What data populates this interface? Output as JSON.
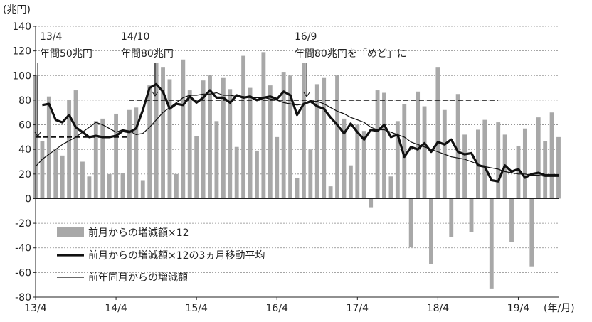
{
  "chart_data": {
    "type": "bar",
    "y_unit": "(兆円)",
    "x_unit": "(年/月)",
    "ylim": [
      -80,
      140
    ],
    "yticks": [
      140,
      120,
      100,
      80,
      60,
      40,
      20,
      0,
      -20,
      -40,
      -60,
      -80
    ],
    "xtick_labels": [
      "13/4",
      "14/4",
      "15/4",
      "16/4",
      "17/4",
      "18/4",
      "19/4"
    ],
    "grid": "dashed-horizontal",
    "legend_position": "bottom-left",
    "target_lines": [
      {
        "from_month": 0,
        "to_month": 14,
        "value": 50
      },
      {
        "from_month": 14,
        "to_month": 69,
        "value": 80
      }
    ],
    "annotations": [
      {
        "date": "13/4",
        "label": "年間50兆円",
        "month_index": 0
      },
      {
        "date": "14/10",
        "label": "年間80兆円",
        "month_index": 18
      },
      {
        "date": "16/9",
        "label": "年間80兆円を「めど」に",
        "month_index": 41
      }
    ],
    "legend": [
      "前月からの増減額×12",
      "前月からの増減額×12の3ヵ月移動平均",
      "前年同月からの増減額"
    ],
    "months": [
      "13/4",
      "13/5",
      "13/6",
      "13/7",
      "13/8",
      "13/9",
      "13/10",
      "13/11",
      "13/12",
      "14/1",
      "14/2",
      "14/3",
      "14/4",
      "14/5",
      "14/6",
      "14/7",
      "14/8",
      "14/9",
      "14/10",
      "14/11",
      "14/12",
      "15/1",
      "15/2",
      "15/3",
      "15/4",
      "15/5",
      "15/6",
      "15/7",
      "15/8",
      "15/9",
      "15/10",
      "15/11",
      "15/12",
      "16/1",
      "16/2",
      "16/3",
      "16/4",
      "16/5",
      "16/6",
      "16/7",
      "16/8",
      "16/9",
      "16/10",
      "16/11",
      "16/12",
      "17/1",
      "17/2",
      "17/3",
      "17/4",
      "17/5",
      "17/6",
      "17/7",
      "17/8",
      "17/9",
      "17/10",
      "17/11",
      "17/12",
      "18/1",
      "18/2",
      "18/3",
      "18/4",
      "18/5",
      "18/6",
      "18/7",
      "18/8",
      "18/9",
      "18/10",
      "18/11",
      "18/12",
      "19/1",
      "19/2",
      "19/3",
      "19/4",
      "19/5",
      "19/6",
      "19/7",
      "19/8",
      "19/9",
      "19/10"
    ],
    "series": [
      {
        "name": "前月からの増減額×12",
        "kind": "bar",
        "values": [
          100,
          47,
          83,
          40,
          35,
          80,
          88,
          30,
          18,
          63,
          65,
          20,
          69,
          21,
          72,
          74,
          15,
          92,
          110,
          107,
          97,
          20,
          113,
          88,
          51,
          96,
          100,
          63,
          98,
          89,
          42,
          116,
          90,
          39,
          119,
          92,
          50,
          103,
          100,
          17,
          110,
          40,
          93,
          98,
          10,
          100,
          65,
          27,
          60,
          55,
          -7,
          88,
          86,
          18,
          63,
          77,
          -39,
          87,
          75,
          -53,
          107,
          72,
          -31,
          85,
          52,
          -27,
          56,
          64,
          -73,
          62,
          52,
          -35,
          43,
          57,
          -55,
          66,
          47,
          70,
          50
        ]
      },
      {
        "name": "前月からの増減額×12の3ヵ月移動平均",
        "kind": "line",
        "values": [
          null,
          76,
          77,
          64,
          62,
          68,
          58,
          54,
          50,
          51,
          50,
          50,
          51,
          55,
          54,
          57,
          72,
          90,
          93,
          87,
          73,
          77,
          76,
          83,
          78,
          82,
          88,
          82,
          82,
          78,
          84,
          82,
          83,
          80,
          82,
          83,
          81,
          87,
          84,
          68,
          77,
          79,
          75,
          73,
          66,
          60,
          53,
          61,
          54,
          48,
          56,
          55,
          60,
          50,
          52,
          34,
          42,
          40,
          45,
          38,
          46,
          44,
          48,
          38,
          36,
          37,
          27,
          26,
          15,
          14,
          27,
          22,
          24,
          17,
          20,
          21,
          19,
          19,
          19
        ]
      },
      {
        "name": "前年同月からの増減額",
        "kind": "line",
        "values": [
          26,
          32,
          36,
          40,
          44,
          47,
          50,
          54,
          58,
          62,
          60,
          57,
          54,
          56,
          55,
          52,
          53,
          58,
          64,
          70,
          74,
          78,
          82,
          84,
          84,
          85,
          85,
          86,
          84,
          84,
          83,
          83,
          82,
          82,
          82,
          81,
          80,
          78,
          77,
          76,
          77,
          79,
          79,
          77,
          74,
          71,
          69,
          66,
          64,
          62,
          58,
          56,
          56,
          54,
          52,
          50,
          46,
          44,
          42,
          40,
          38,
          36,
          34,
          33,
          32,
          30,
          28,
          26,
          25,
          24,
          22,
          21,
          20,
          20,
          19,
          19,
          18,
          18,
          18
        ]
      }
    ]
  }
}
